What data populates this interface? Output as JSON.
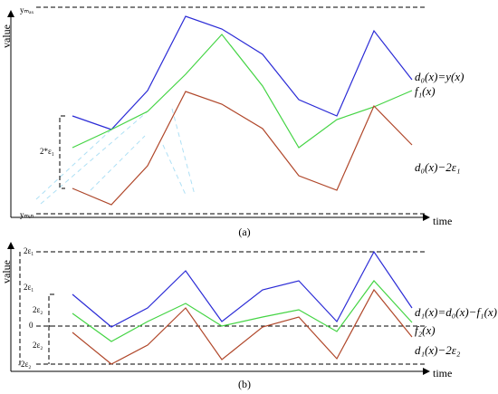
{
  "panel_a": {
    "y_axis_label": "value",
    "x_axis_label": "time",
    "ymax_label": "yₘₐₓ",
    "ymin_label": "yₘᵢₙ",
    "bracket_label": "2*ε₁",
    "curve_labels": [
      "d₀(x)=y(x)",
      "f₁(x)",
      "d₀(x)−2ε₁"
    ],
    "caption": "(a)"
  },
  "panel_b": {
    "y_axis_label": "value",
    "x_axis_label": "time",
    "level_labels": [
      "2ε₁",
      "2ε₁",
      "2ε₂",
      "0",
      "2ε₂",
      "-2ε₂"
    ],
    "curve_labels": [
      "d₁(x)=d₀(x)−f₁(x)",
      "f₂(x)",
      "d₁(x)−2ε₂"
    ],
    "caption": "(b)"
  }
}
